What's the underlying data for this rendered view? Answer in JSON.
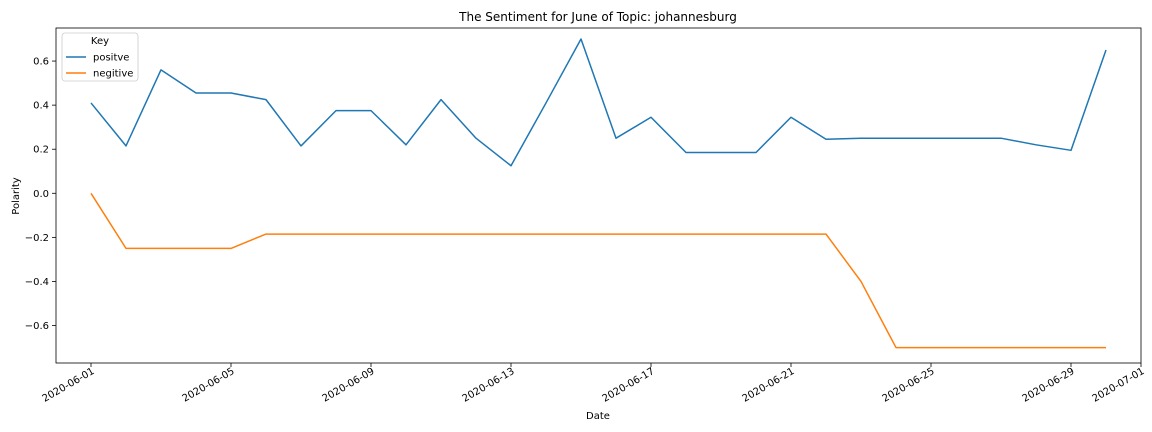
{
  "chart_data": {
    "type": "line",
    "title": "The Sentiment for June of Topic: johannesburg",
    "xlabel": "Date",
    "ylabel": "Polarity",
    "x_tick_labels": [
      "2020-06-01",
      "2020-06-05",
      "2020-06-09",
      "2020-06-13",
      "2020-06-17",
      "2020-06-21",
      "2020-06-25",
      "2020-06-29",
      "2020-07-01"
    ],
    "y_tick_labels": [
      "0.6",
      "0.4",
      "0.2",
      "0.0",
      "−0.2",
      "−0.4",
      "−0.6"
    ],
    "y_ticks": [
      0.6,
      0.4,
      0.2,
      0.0,
      -0.2,
      -0.4,
      -0.6
    ],
    "xlim": [
      "2020-05-31T00:00",
      "2020-07-01T00:00"
    ],
    "ylim": [
      -0.77,
      0.75
    ],
    "grid": false,
    "legend": {
      "title": "Key",
      "placement": "top-left"
    },
    "x": [
      "2020-06-01",
      "2020-06-02",
      "2020-06-03",
      "2020-06-04",
      "2020-06-05",
      "2020-06-06",
      "2020-06-07",
      "2020-06-08",
      "2020-06-09",
      "2020-06-10",
      "2020-06-11",
      "2020-06-12",
      "2020-06-13",
      "2020-06-14",
      "2020-06-15",
      "2020-06-16",
      "2020-06-17",
      "2020-06-18",
      "2020-06-19",
      "2020-06-20",
      "2020-06-21",
      "2020-06-22",
      "2020-06-23",
      "2020-06-24",
      "2020-06-25",
      "2020-06-26",
      "2020-06-27",
      "2020-06-28",
      "2020-06-29",
      "2020-06-30"
    ],
    "series": [
      {
        "name": "positve",
        "color": "#1f77b4",
        "values": [
          0.41,
          0.215,
          0.56,
          0.455,
          0.455,
          0.425,
          0.215,
          0.375,
          0.375,
          0.22,
          0.425,
          0.25,
          0.125,
          0.41,
          0.7,
          0.25,
          0.345,
          0.185,
          0.185,
          0.185,
          0.345,
          0.245,
          0.25,
          0.25,
          0.25,
          0.25,
          0.25,
          0.22,
          0.195,
          0.65
        ]
      },
      {
        "name": "negitive",
        "color": "#ff7f0e",
        "values": [
          0.0,
          -0.25,
          -0.25,
          -0.25,
          -0.25,
          -0.185,
          -0.185,
          -0.185,
          -0.185,
          -0.185,
          -0.185,
          -0.185,
          -0.185,
          -0.185,
          -0.185,
          -0.185,
          -0.185,
          -0.185,
          -0.185,
          -0.185,
          -0.185,
          -0.185,
          -0.4,
          -0.7,
          -0.7,
          -0.7,
          -0.7,
          -0.7,
          -0.7,
          -0.7
        ]
      }
    ]
  }
}
